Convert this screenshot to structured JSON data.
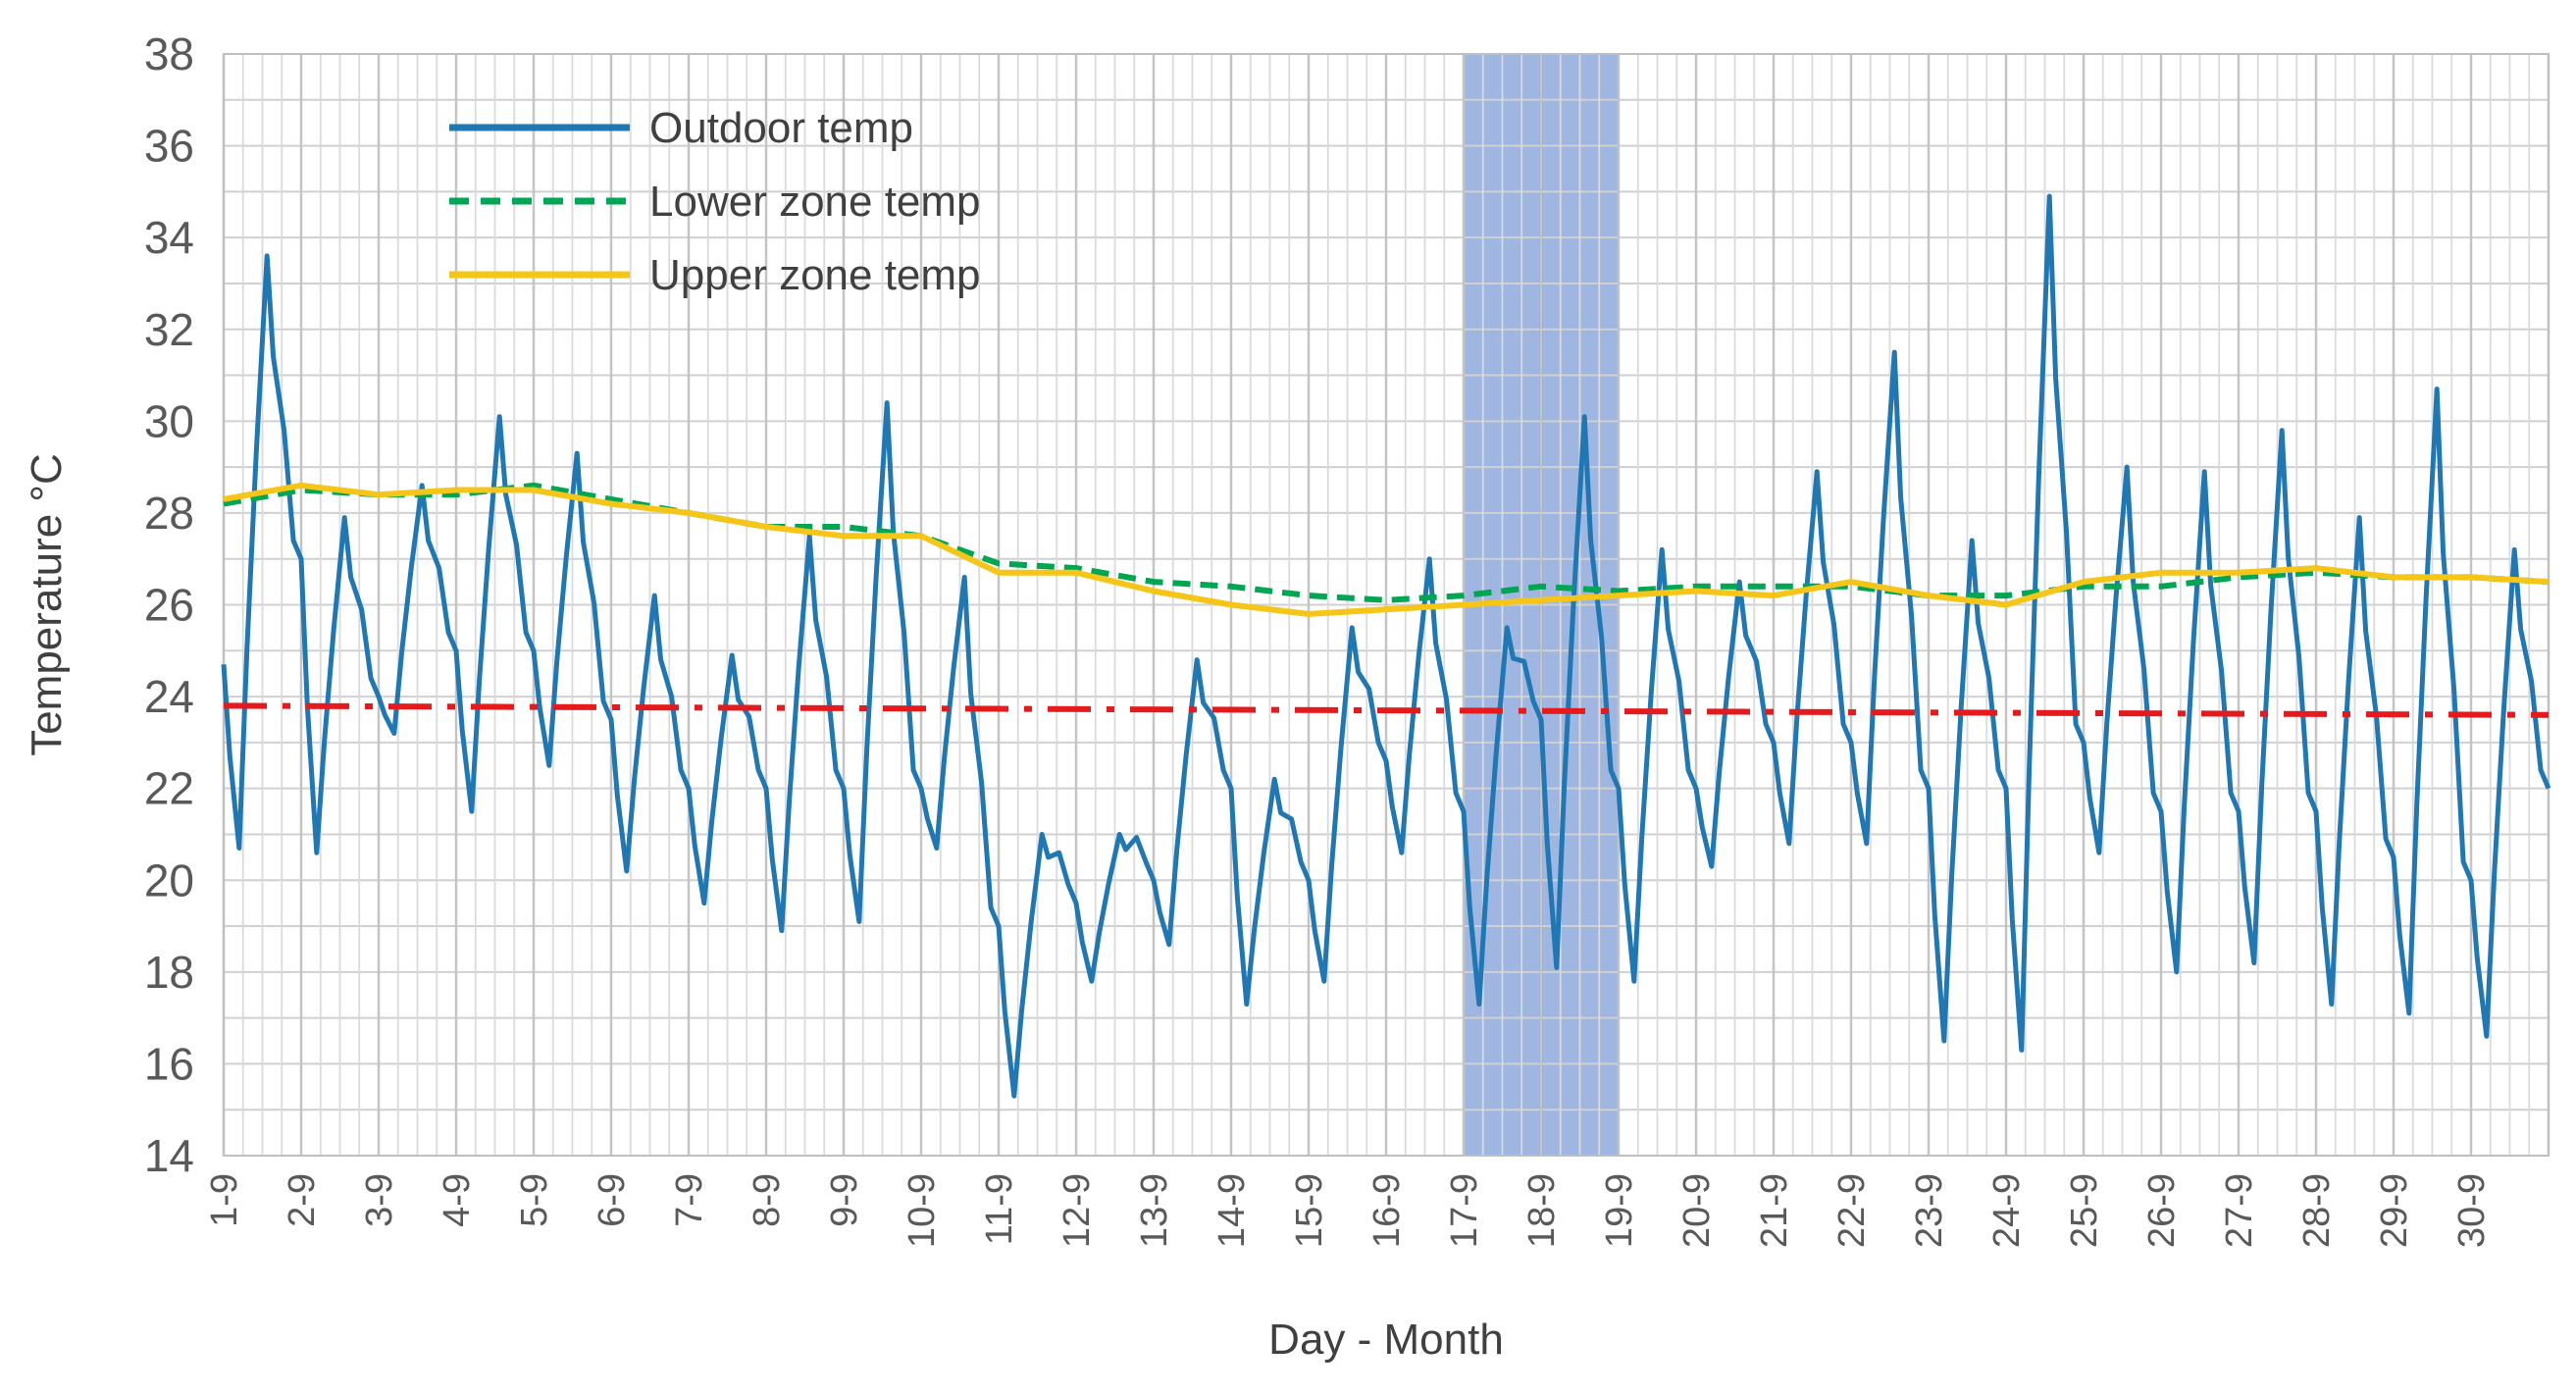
{
  "chart_data": {
    "type": "line",
    "title": "",
    "xlabel": "Day - Month",
    "ylabel": "Temperature °C",
    "ylim": [
      14,
      38
    ],
    "yticks": [
      "14",
      "16",
      "18",
      "20",
      "22",
      "24",
      "26",
      "28",
      "30",
      "32",
      "34",
      "36",
      "38"
    ],
    "categories": [
      "1-9",
      "2-9",
      "3-9",
      "4-9",
      "5-9",
      "6-9",
      "7-9",
      "8-9",
      "9-9",
      "10-9",
      "11-9",
      "12-9",
      "13-9",
      "14-9",
      "15-9",
      "16-9",
      "17-9",
      "18-9",
      "19-9",
      "20-9",
      "21-9",
      "22-9",
      "23-9",
      "24-9",
      "25-9",
      "26-9",
      "27-9",
      "28-9",
      "29-9",
      "30-9"
    ],
    "x_unit": "day of September (hourly resolution)",
    "xlim": [
      1,
      31
    ],
    "grid": true,
    "legend_position": "top-left",
    "highlight_band": {
      "label": "",
      "x_start": 17,
      "x_end": 19,
      "divider": 18,
      "color": "#8EA9DB"
    },
    "series": [
      {
        "name": "Outdoor temp",
        "style": "solid",
        "color": "#1F77B4",
        "daily_extrema": [
          [
            24.7,
            20.7,
            33.6
          ],
          [
            27.0,
            20.6,
            27.9
          ],
          [
            24.0,
            23.2,
            28.6
          ],
          [
            25.0,
            21.5,
            30.1
          ],
          [
            25.0,
            22.5,
            29.3
          ],
          [
            23.5,
            20.2,
            26.2
          ],
          [
            22.0,
            19.5,
            24.9
          ],
          [
            22.0,
            18.9,
            27.5
          ],
          [
            22.0,
            19.1,
            30.4
          ],
          [
            22.0,
            20.7,
            26.6
          ],
          [
            19.0,
            15.3,
            21.0
          ],
          [
            19.5,
            17.8,
            21.0
          ],
          [
            20.0,
            18.6,
            24.8
          ],
          [
            22.0,
            17.3,
            22.2
          ],
          [
            20.0,
            17.8,
            25.5
          ],
          [
            22.6,
            20.6,
            27.0
          ],
          [
            21.5,
            17.3,
            25.5
          ],
          [
            23.5,
            18.1,
            30.1
          ],
          [
            22.0,
            17.8,
            27.2
          ],
          [
            22.0,
            20.3,
            26.5
          ],
          [
            23.0,
            20.8,
            28.9
          ],
          [
            23.0,
            20.8,
            31.5
          ],
          [
            22.0,
            16.5,
            27.4
          ],
          [
            22.0,
            16.3,
            34.9
          ],
          [
            23.0,
            20.6,
            29.0
          ],
          [
            21.5,
            18.0,
            28.9
          ],
          [
            21.5,
            18.2,
            29.8
          ],
          [
            21.5,
            17.3,
            27.9
          ],
          [
            20.5,
            17.1,
            30.7
          ],
          [
            20.0,
            16.6,
            27.2
          ]
        ],
        "end_value": 22.0
      },
      {
        "name": "Lower zone temp",
        "style": "dashed",
        "color": "#00A651",
        "x": [
          1,
          2,
          3,
          4,
          5,
          6,
          7,
          8,
          9,
          10,
          11,
          12,
          13,
          14,
          15,
          16,
          17,
          18,
          19,
          20,
          21,
          22,
          23,
          24,
          25,
          26,
          27,
          28,
          29,
          30,
          31
        ],
        "values": [
          28.2,
          28.5,
          28.4,
          28.4,
          28.6,
          28.3,
          28.0,
          27.7,
          27.7,
          27.5,
          26.9,
          26.8,
          26.5,
          26.4,
          26.2,
          26.1,
          26.2,
          26.4,
          26.3,
          26.4,
          26.4,
          26.4,
          26.2,
          26.2,
          26.4,
          26.4,
          26.6,
          26.7,
          26.6,
          26.6,
          26.5
        ]
      },
      {
        "name": "Upper zone temp",
        "style": "solid",
        "color": "#F5C518",
        "x": [
          1,
          2,
          3,
          4,
          5,
          6,
          7,
          8,
          9,
          10,
          11,
          12,
          13,
          14,
          15,
          16,
          17,
          18,
          19,
          20,
          21,
          22,
          23,
          24,
          25,
          26,
          27,
          28,
          29,
          30,
          31
        ],
        "values": [
          28.3,
          28.6,
          28.4,
          28.5,
          28.5,
          28.2,
          28.0,
          27.7,
          27.5,
          27.5,
          26.7,
          26.7,
          26.3,
          26.0,
          25.8,
          25.9,
          26.0,
          26.1,
          26.2,
          26.3,
          26.2,
          26.5,
          26.2,
          26.0,
          26.5,
          26.7,
          26.7,
          26.8,
          26.6,
          26.6,
          26.5
        ]
      },
      {
        "name": "",
        "style": "dash-dot",
        "color": "#E41A1C",
        "x": [
          1,
          31
        ],
        "values": [
          23.8,
          23.6
        ]
      }
    ]
  }
}
